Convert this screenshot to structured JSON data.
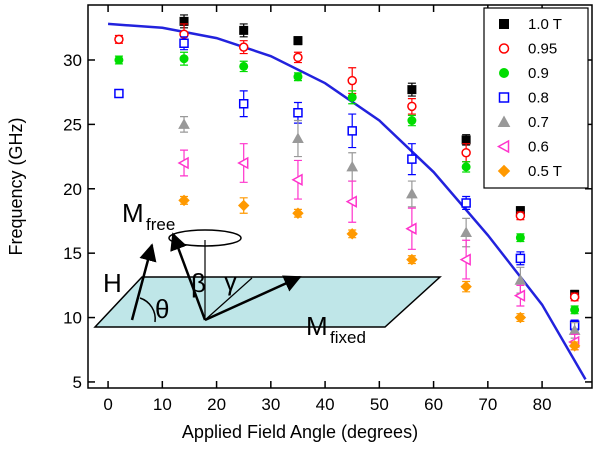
{
  "chart_data": {
    "type": "scatter",
    "x_label": "Applied Field Angle (degrees)",
    "y_label": "Frequency (GHz)",
    "xlim": [
      -3.7,
      89.2
    ],
    "ylim": [
      4.53,
      34.27
    ],
    "xticks": [
      0,
      10,
      20,
      30,
      40,
      50,
      60,
      70,
      80
    ],
    "yticks": [
      5,
      10,
      15,
      20,
      25,
      30
    ],
    "legend": "top-right",
    "series": [
      {
        "name": "1.0 T",
        "color": "#000000",
        "marker": "square",
        "filled": true,
        "x": [
          14,
          25,
          35,
          56,
          66,
          76,
          86
        ],
        "values": [
          33.0,
          32.3,
          31.5,
          27.7,
          23.8,
          18.3,
          11.8
        ],
        "errors": [
          0.5,
          0.5,
          0.3,
          0.5,
          0.4,
          0.3,
          0.3
        ]
      },
      {
        "name": "0.95",
        "color": "#ff0000",
        "marker": "circle",
        "filled": false,
        "x": [
          2,
          14,
          25,
          35,
          45,
          56,
          66,
          76,
          86
        ],
        "values": [
          31.6,
          32.0,
          31.0,
          30.2,
          28.4,
          26.4,
          22.8,
          17.9,
          11.6
        ],
        "errors": [
          0.3,
          0.8,
          0.5,
          0.4,
          1.0,
          0.6,
          0.7,
          0.3,
          0.3
        ]
      },
      {
        "name": "0.9",
        "color": "#00dd00",
        "marker": "circle",
        "filled": true,
        "x": [
          2,
          14,
          25,
          35,
          45,
          56,
          66,
          76,
          86
        ],
        "values": [
          30.0,
          30.1,
          29.5,
          28.7,
          27.1,
          25.3,
          21.7,
          16.2,
          10.6
        ],
        "errors": [
          0.3,
          0.5,
          0.4,
          0.3,
          0.5,
          0.4,
          0.4,
          0.3,
          0.3
        ]
      },
      {
        "name": "0.8",
        "color": "#0000ff",
        "marker": "square",
        "filled": false,
        "x": [
          2,
          14,
          25,
          35,
          45,
          56,
          66,
          76,
          86
        ],
        "values": [
          27.4,
          31.3,
          26.6,
          25.9,
          24.5,
          22.3,
          18.9,
          14.6,
          9.4
        ],
        "errors": [
          0.3,
          0.5,
          1.0,
          0.8,
          1.3,
          1.2,
          0.5,
          0.5,
          0.4
        ]
      },
      {
        "name": "0.7",
        "color": "#999999",
        "marker": "triangle",
        "filled": true,
        "x": [
          14,
          35,
          45,
          56,
          66,
          76,
          86
        ],
        "values": [
          25.0,
          23.9,
          21.7,
          19.6,
          16.6,
          12.9,
          9.0
        ],
        "errors": [
          0.6,
          1.4,
          1.1,
          1.0,
          1.1,
          1.0,
          0.6
        ]
      },
      {
        "name": "0.6",
        "color": "#ff33cc",
        "marker": "triangle-left",
        "filled": false,
        "x": [
          14,
          25,
          35,
          45,
          56,
          66,
          76,
          86
        ],
        "values": [
          22.0,
          22.0,
          20.7,
          19.0,
          16.9,
          14.5,
          11.7,
          8.1
        ],
        "errors": [
          1.0,
          1.5,
          1.5,
          1.6,
          1.6,
          1.5,
          0.8,
          0.6
        ]
      },
      {
        "name": "0.5 T",
        "color": "#ff9900",
        "marker": "diamond",
        "filled": true,
        "x": [
          14,
          25,
          35,
          45,
          56,
          66,
          76,
          86
        ],
        "values": [
          19.1,
          18.7,
          18.1,
          16.5,
          14.5,
          12.4,
          10.0,
          7.8
        ],
        "errors": [
          0.3,
          0.6,
          0.3,
          0.3,
          0.3,
          0.4,
          0.3,
          0.3
        ]
      }
    ],
    "fit": {
      "color": "#2222dd",
      "x": [
        0,
        10,
        20,
        30,
        40,
        50,
        60,
        70,
        80,
        88
      ],
      "values": [
        32.8,
        32.5,
        31.7,
        30.3,
        28.2,
        25.3,
        21.3,
        16.4,
        11.0,
        5.2
      ]
    },
    "inset": {
      "m_free": "M",
      "m_free_sub": "free",
      "h": "H",
      "theta": "θ",
      "beta": "β",
      "gamma": "γ",
      "m_fixed": "M",
      "m_fixed_sub": "fixed"
    }
  }
}
